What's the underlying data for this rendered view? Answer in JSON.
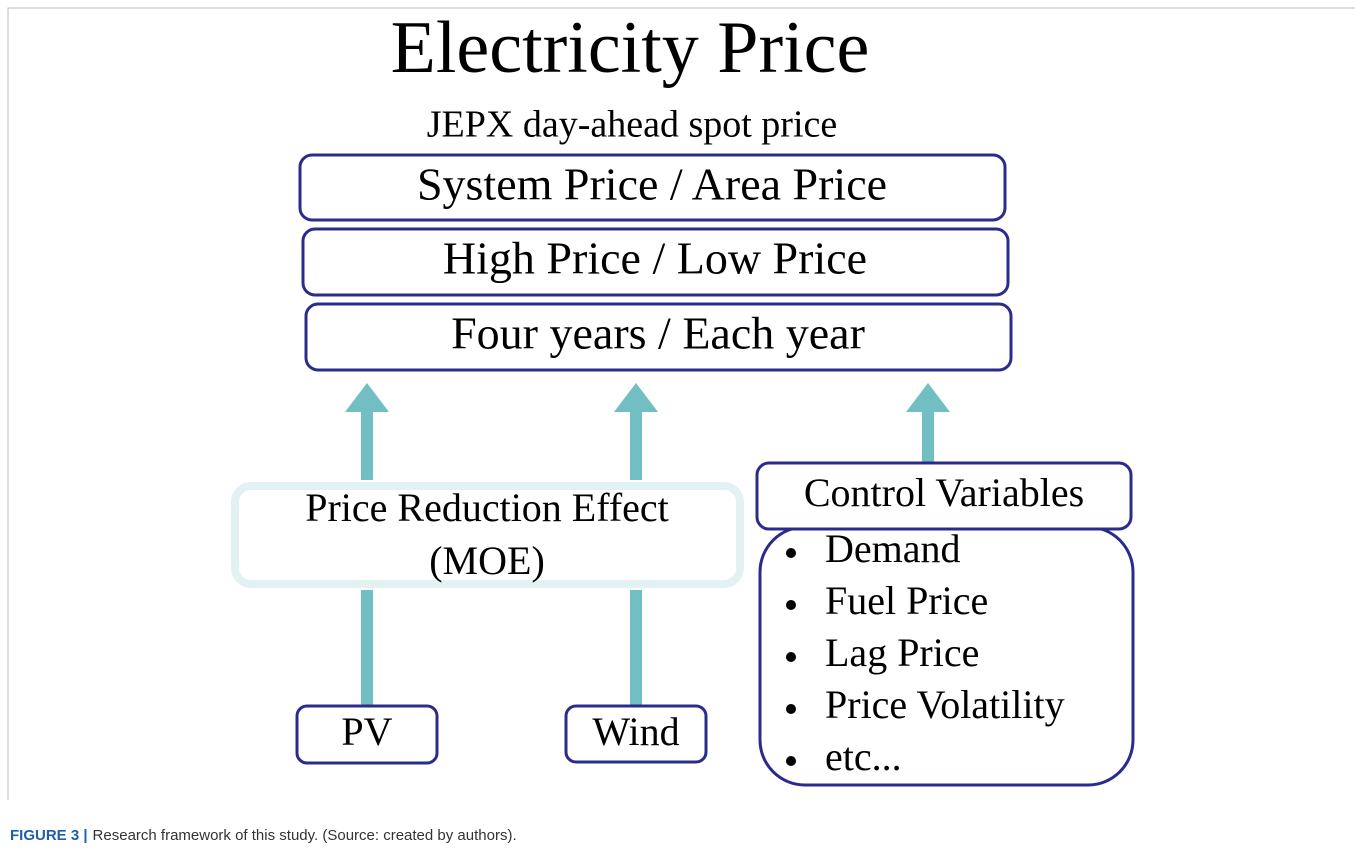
{
  "title": "Electricity Price",
  "subtitle": "JEPX day-ahead spot price",
  "price_boxes": [
    "System Price / Area Price",
    "High Price / Low Price",
    "Four years / Each year"
  ],
  "effect": {
    "line1": "Price Reduction Effect",
    "line2": "(MOE)"
  },
  "inputs": [
    "PV",
    "Wind"
  ],
  "control": {
    "title": "Control Variables",
    "items": [
      "Demand",
      "Fuel Price",
      "Lag Price",
      "Price Volatility",
      "etc..."
    ]
  },
  "caption": {
    "label": "FIGURE 3 |",
    "text": "Research framework of this study. (Source: created by authors)."
  }
}
